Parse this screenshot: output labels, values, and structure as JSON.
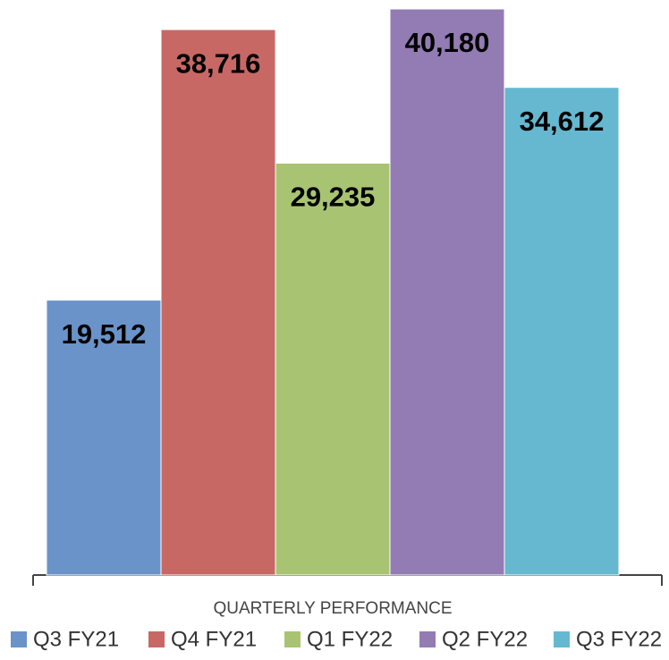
{
  "chart_data": {
    "type": "bar",
    "categories": [
      "QUARTERLY PERFORMANCE"
    ],
    "series": [
      {
        "name": "Q3 FY21",
        "color": "#6a93c9",
        "values": [
          19512
        ],
        "value_labels": [
          "19,512"
        ]
      },
      {
        "name": "Q4 FY21",
        "color": "#c86865",
        "values": [
          38716
        ],
        "value_labels": [
          "38,716"
        ]
      },
      {
        "name": "Q1 FY22",
        "color": "#a8c472",
        "values": [
          29235
        ],
        "value_labels": [
          "29,235"
        ]
      },
      {
        "name": "Q2 FY22",
        "color": "#937bb3",
        "values": [
          40180
        ],
        "value_labels": [
          "40,180"
        ]
      },
      {
        "name": "Q3 FY22",
        "color": "#65b8cf",
        "values": [
          34612
        ],
        "value_labels": [
          "34,612"
        ]
      }
    ],
    "legend": "bottom"
  }
}
